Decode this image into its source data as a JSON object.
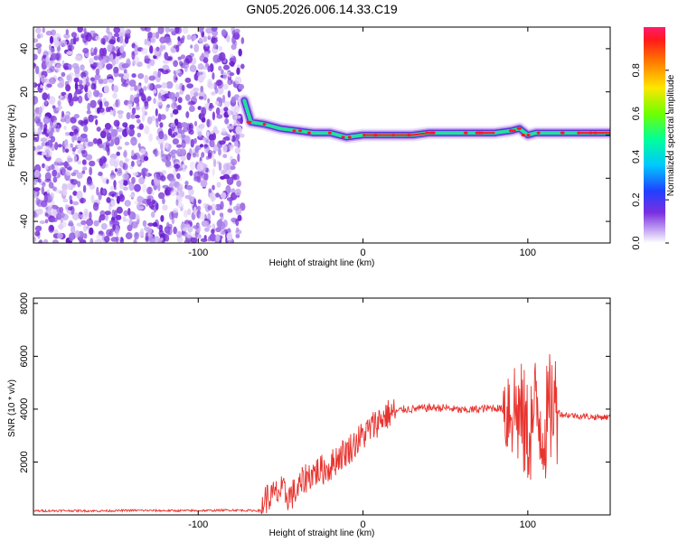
{
  "title": "GN05.2026.006.14.33.C19",
  "chart_data": [
    {
      "type": "heatmap",
      "title": "",
      "xlabel": "Height of straight line (km)",
      "ylabel": "Frequency (Hz)",
      "xlim": [
        -200,
        150
      ],
      "ylim": [
        -50,
        50
      ],
      "xticks": [
        -100,
        0,
        100
      ],
      "xticklabels": [
        "-100",
        "0",
        "100"
      ],
      "yticks": [
        -40,
        -20,
        0,
        20,
        40
      ],
      "yticklabels": [
        "-40",
        "-20",
        "0",
        "20",
        "40"
      ],
      "noise_region_x": [
        -200,
        -70
      ],
      "ridge": {
        "x": [
          -72,
          -68,
          -60,
          -50,
          -40,
          -30,
          -20,
          -10,
          0,
          10,
          20,
          30,
          40,
          50,
          60,
          70,
          80,
          90,
          95,
          100,
          105,
          110,
          120,
          130,
          140,
          150
        ],
        "frequency": [
          16,
          6,
          5,
          3,
          2,
          1,
          1,
          -1,
          0,
          0,
          0,
          0,
          1,
          1,
          1,
          1,
          1,
          2,
          3,
          0,
          1,
          1,
          1,
          1,
          1,
          1
        ]
      },
      "colorbar": {
        "label": "Normalized spectral amplitude",
        "range": [
          0,
          1
        ],
        "ticks": [
          "0.0",
          "0.2",
          "0.4",
          "0.6",
          "0.8"
        ]
      }
    },
    {
      "type": "line",
      "title": "",
      "xlabel": "Height of straight line (km)",
      "ylabel": "SNR (10 * v/v)",
      "xlim": [
        -200,
        150
      ],
      "ylim": [
        0,
        8200
      ],
      "xticks": [
        -100,
        0,
        100
      ],
      "xticklabels": [
        "-100",
        "0",
        "100"
      ],
      "yticks": [
        2000,
        4000,
        6000,
        8000
      ],
      "yticklabels": [
        "2000",
        "4000",
        "6000",
        "8000"
      ],
      "series": [
        {
          "name": "SNR",
          "color": "#e8332e",
          "x": [
            -200,
            -180,
            -160,
            -140,
            -120,
            -100,
            -80,
            -62,
            -60,
            -55,
            -50,
            -45,
            -40,
            -35,
            -30,
            -25,
            -20,
            -15,
            -10,
            -5,
            0,
            5,
            10,
            15,
            20,
            25,
            30,
            40,
            50,
            60,
            70,
            80,
            85,
            90,
            95,
            100,
            105,
            110,
            115,
            120,
            130,
            140,
            150
          ],
          "y": [
            150,
            160,
            150,
            170,
            160,
            160,
            180,
            160,
            600,
            700,
            900,
            700,
            900,
            1400,
            1600,
            1700,
            1800,
            2200,
            2400,
            2700,
            3000,
            3300,
            3600,
            3800,
            3900,
            4000,
            4000,
            4050,
            4050,
            3950,
            4000,
            4050,
            4000,
            4200,
            3800,
            3000,
            4000,
            3200,
            4300,
            3800,
            3750,
            3700,
            3700
          ]
        }
      ]
    }
  ],
  "colors": {
    "noise": "#7a2fd6",
    "line": "#e8332e",
    "ridge_low": "#5b2bd8",
    "ridge_mid": "#22e0a0",
    "ridge_high": "#ff1a1a"
  }
}
